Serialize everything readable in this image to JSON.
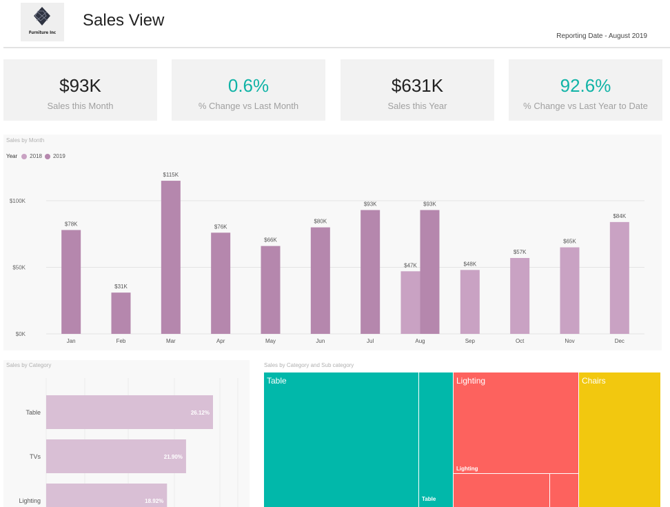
{
  "header": {
    "logo_text": "Furniture Inc",
    "title": "Sales View",
    "reporting_date": "Reporting Date - August 2019"
  },
  "kpis": [
    {
      "value": "$93K",
      "label": "Sales this Month",
      "accent": false
    },
    {
      "value": "0.6%",
      "label": "% Change vs Last Month",
      "accent": true
    },
    {
      "value": "$631K",
      "label": "Sales this Year",
      "accent": false
    },
    {
      "value": "92.6%",
      "label": "% Change vs Last Year to Date",
      "accent": true
    }
  ],
  "colors": {
    "teal": "#10b3a6",
    "series_2018": "#c9a2c3",
    "series_2019": "#b587ad",
    "category_bar": "#d9bfd5",
    "tree_table": "#01b8aa",
    "tree_lighting": "#fd625e",
    "tree_chairs": "#f2c80f"
  },
  "sales_by_month": {
    "panel_title": "Sales by Month",
    "legend": {
      "title": "Year",
      "items": [
        "2018",
        "2019"
      ]
    }
  },
  "sales_by_category": {
    "panel_title": "Sales by Category"
  },
  "sales_by_subcategory": {
    "panel_title": "Sales by Category and Sub category",
    "blocks": [
      {
        "name": "Table",
        "sub_label": "Table"
      },
      {
        "name": "Lighting",
        "sub_label": "Lighting"
      },
      {
        "name": "Chairs"
      }
    ]
  },
  "chart_data": [
    {
      "type": "bar",
      "title": "Sales by Month",
      "categories": [
        "Jan",
        "Feb",
        "Mar",
        "Apr",
        "May",
        "Jun",
        "Jul",
        "Aug",
        "Sep",
        "Oct",
        "Nov",
        "Dec"
      ],
      "series": [
        {
          "name": "2018",
          "values": [
            null,
            null,
            null,
            null,
            null,
            null,
            null,
            47,
            48,
            57,
            65,
            84
          ],
          "labels": [
            "",
            "",
            "",
            "",
            "",
            "",
            "",
            "$47K",
            "$48K",
            "$57K",
            "$65K",
            "$84K"
          ]
        },
        {
          "name": "2019",
          "values": [
            78,
            31,
            115,
            76,
            66,
            80,
            93,
            93,
            null,
            null,
            null,
            null
          ],
          "labels": [
            "$78K",
            "$31K",
            "$115K",
            "$76K",
            "$66K",
            "$80K",
            "$93K",
            "$93K",
            "",
            "",
            "",
            ""
          ]
        }
      ],
      "y_ticks": [
        "$0K",
        "$50K",
        "$100K"
      ],
      "ylim": [
        0,
        115
      ],
      "legend": "top-left",
      "grid": true
    },
    {
      "type": "bar",
      "orientation": "horizontal",
      "title": "Sales by Category",
      "categories": [
        "Table",
        "TVs",
        "Lighting"
      ],
      "values": [
        26.12,
        21.9,
        18.92
      ],
      "labels": [
        "26.12%",
        "21.90%",
        "18.92%"
      ]
    }
  ]
}
